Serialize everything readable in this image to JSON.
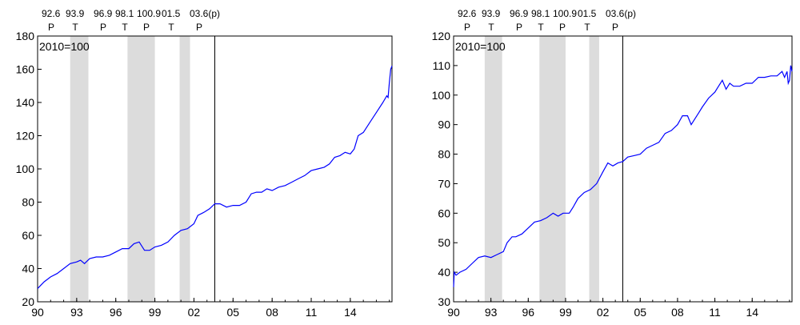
{
  "chart_data": [
    {
      "type": "line",
      "annotation": "2010=100",
      "ylim": [
        20,
        180
      ],
      "yticks": [
        20,
        40,
        60,
        80,
        100,
        120,
        140,
        160,
        180
      ],
      "xlim": [
        1990,
        2017.2
      ],
      "xticks": [
        {
          "x": 1990,
          "label": "90"
        },
        {
          "x": 1993,
          "label": "93"
        },
        {
          "x": 1996,
          "label": "96"
        },
        {
          "x": 1999,
          "label": "99"
        },
        {
          "x": 2002,
          "label": "02"
        },
        {
          "x": 2005,
          "label": "05"
        },
        {
          "x": 2008,
          "label": "08"
        },
        {
          "x": 2011,
          "label": "11"
        },
        {
          "x": 2014,
          "label": "14"
        }
      ],
      "shaded_periods": [
        [
          1992.5,
          1993.9
        ],
        [
          1996.9,
          1999.0
        ],
        [
          2000.9,
          2001.7
        ]
      ],
      "vline_x": 2003.6,
      "turning_points": [
        {
          "date": "92.6",
          "type": "P"
        },
        {
          "date": "93.9",
          "type": "T"
        },
        {
          "date": "96.9",
          "type": "P"
        },
        {
          "date": "98.1",
          "type": "T"
        },
        {
          "date": "100.9",
          "type": "P"
        },
        {
          "date": "01.5",
          "type": "T"
        },
        {
          "date": "03.6(p)",
          "type": "P"
        }
      ],
      "series": [
        {
          "color": "#0000ff",
          "points": [
            [
              1990,
              28
            ],
            [
              1990.5,
              32
            ],
            [
              1991,
              35
            ],
            [
              1991.5,
              37
            ],
            [
              1992,
              40
            ],
            [
              1992.5,
              43
            ],
            [
              1993,
              44
            ],
            [
              1993.3,
              45
            ],
            [
              1993.6,
              43
            ],
            [
              1994,
              46
            ],
            [
              1994.5,
              47
            ],
            [
              1995,
              47
            ],
            [
              1995.5,
              48
            ],
            [
              1996,
              50
            ],
            [
              1996.5,
              52
            ],
            [
              1997,
              52
            ],
            [
              1997.4,
              55
            ],
            [
              1997.8,
              56
            ],
            [
              1998.2,
              51
            ],
            [
              1998.6,
              51
            ],
            [
              1999,
              53
            ],
            [
              1999.5,
              54
            ],
            [
              2000,
              56
            ],
            [
              2000.5,
              60
            ],
            [
              2001,
              63
            ],
            [
              2001.5,
              64
            ],
            [
              2002,
              67
            ],
            [
              2002.3,
              72
            ],
            [
              2002.8,
              74
            ],
            [
              2003.2,
              76
            ],
            [
              2003.6,
              79
            ],
            [
              2004,
              79
            ],
            [
              2004.5,
              77
            ],
            [
              2005,
              78
            ],
            [
              2005.5,
              78
            ],
            [
              2006,
              80
            ],
            [
              2006.4,
              85
            ],
            [
              2006.8,
              86
            ],
            [
              2007.2,
              86
            ],
            [
              2007.6,
              88
            ],
            [
              2008,
              87
            ],
            [
              2008.5,
              89
            ],
            [
              2009,
              90
            ],
            [
              2009.5,
              92
            ],
            [
              2010,
              94
            ],
            [
              2010.5,
              96
            ],
            [
              2011,
              99
            ],
            [
              2011.5,
              100
            ],
            [
              2012,
              101
            ],
            [
              2012.4,
              103
            ],
            [
              2012.8,
              107
            ],
            [
              2013.2,
              108
            ],
            [
              2013.6,
              110
            ],
            [
              2014,
              109
            ],
            [
              2014.3,
              112
            ],
            [
              2014.6,
              120
            ],
            [
              2015,
              122
            ],
            [
              2015.5,
              128
            ],
            [
              2016,
              134
            ],
            [
              2016.5,
              140
            ],
            [
              2016.8,
              144
            ],
            [
              2016.9,
              143
            ],
            [
              2017,
              152
            ],
            [
              2017.1,
              160
            ],
            [
              2017.2,
              162
            ]
          ]
        }
      ]
    },
    {
      "type": "line",
      "annotation": "2010=100",
      "ylim": [
        30,
        120
      ],
      "yticks": [
        30,
        40,
        50,
        60,
        70,
        80,
        90,
        100,
        110,
        120
      ],
      "xlim": [
        1990,
        2017.2
      ],
      "xticks": [
        {
          "x": 1990,
          "label": "90"
        },
        {
          "x": 1993,
          "label": "93"
        },
        {
          "x": 1996,
          "label": "96"
        },
        {
          "x": 1999,
          "label": "99"
        },
        {
          "x": 2002,
          "label": "02"
        },
        {
          "x": 2005,
          "label": "05"
        },
        {
          "x": 2008,
          "label": "08"
        },
        {
          "x": 2011,
          "label": "11"
        },
        {
          "x": 2014,
          "label": "14"
        }
      ],
      "shaded_periods": [
        [
          1992.5,
          1993.9
        ],
        [
          1996.9,
          1999.0
        ],
        [
          2000.9,
          2001.7
        ]
      ],
      "vline_x": 2003.6,
      "turning_points": [
        {
          "date": "92.6",
          "type": "P"
        },
        {
          "date": "93.9",
          "type": "T"
        },
        {
          "date": "96.9",
          "type": "P"
        },
        {
          "date": "98.1",
          "type": "T"
        },
        {
          "date": "100.9",
          "type": "P"
        },
        {
          "date": "01.5",
          "type": "T"
        },
        {
          "date": "03.6(p)",
          "type": "P"
        }
      ],
      "series": [
        {
          "color": "#0000ff",
          "points": [
            [
              1990,
              35
            ],
            [
              1990.05,
              40
            ],
            [
              1990.2,
              39
            ],
            [
              1990.5,
              40
            ],
            [
              1991,
              41
            ],
            [
              1991.5,
              43
            ],
            [
              1992,
              45
            ],
            [
              1992.5,
              45.5
            ],
            [
              1993,
              45
            ],
            [
              1993.5,
              46
            ],
            [
              1994,
              47
            ],
            [
              1994.3,
              50
            ],
            [
              1994.7,
              52
            ],
            [
              1995,
              52
            ],
            [
              1995.5,
              53
            ],
            [
              1996,
              55
            ],
            [
              1996.5,
              57
            ],
            [
              1997,
              57.5
            ],
            [
              1997.5,
              58.5
            ],
            [
              1998,
              60
            ],
            [
              1998.4,
              59
            ],
            [
              1998.8,
              60
            ],
            [
              1999.3,
              60
            ],
            [
              1999.6,
              62
            ],
            [
              2000,
              65
            ],
            [
              2000.5,
              67
            ],
            [
              2001,
              68
            ],
            [
              2001.5,
              70
            ],
            [
              2002,
              74
            ],
            [
              2002.4,
              77
            ],
            [
              2002.8,
              76
            ],
            [
              2003.2,
              77
            ],
            [
              2003.6,
              77.5
            ],
            [
              2004,
              79
            ],
            [
              2004.5,
              79.5
            ],
            [
              2005,
              80
            ],
            [
              2005.5,
              82
            ],
            [
              2006,
              83
            ],
            [
              2006.5,
              84
            ],
            [
              2007,
              87
            ],
            [
              2007.5,
              88
            ],
            [
              2008,
              90
            ],
            [
              2008.4,
              93
            ],
            [
              2008.8,
              93
            ],
            [
              2009.1,
              90
            ],
            [
              2009.4,
              92
            ],
            [
              2009.7,
              94
            ],
            [
              2010,
              96
            ],
            [
              2010.5,
              99
            ],
            [
              2011,
              101
            ],
            [
              2011.3,
              103
            ],
            [
              2011.6,
              105
            ],
            [
              2011.9,
              102
            ],
            [
              2012.2,
              104
            ],
            [
              2012.5,
              103
            ],
            [
              2013,
              103
            ],
            [
              2013.5,
              104
            ],
            [
              2014,
              104
            ],
            [
              2014.5,
              106
            ],
            [
              2015,
              106
            ],
            [
              2015.5,
              106.5
            ],
            [
              2016,
              106.5
            ],
            [
              2016.4,
              108
            ],
            [
              2016.6,
              106
            ],
            [
              2016.8,
              108
            ],
            [
              2016.9,
              104
            ],
            [
              2017,
              105
            ],
            [
              2017.1,
              110
            ],
            [
              2017.2,
              108
            ]
          ]
        }
      ]
    }
  ]
}
